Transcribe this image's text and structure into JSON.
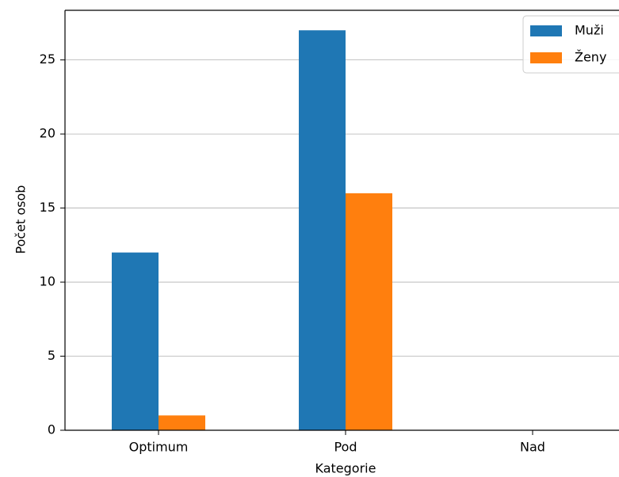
{
  "chart_data": {
    "type": "bar",
    "categories": [
      "Optimum",
      "Pod",
      "Nad"
    ],
    "series": [
      {
        "name": "Muži",
        "values": [
          12,
          27,
          0
        ],
        "color": "#1f77b4"
      },
      {
        "name": "Ženy",
        "values": [
          1,
          16,
          0
        ],
        "color": "#ff7f0e"
      }
    ],
    "xlabel": "Kategorie",
    "ylabel": "Počet osob",
    "ylim": [
      0,
      28.35
    ],
    "yticks": [
      0,
      5,
      10,
      15,
      20,
      25
    ],
    "grid": "y",
    "legend_position": "top-right"
  }
}
